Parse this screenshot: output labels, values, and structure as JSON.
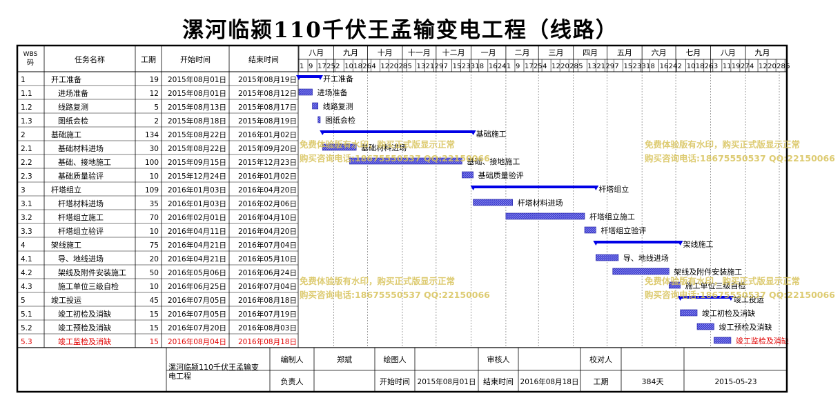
{
  "title": "漯河临颍110千伏王孟输变电工程（线路）",
  "headers": {
    "wbs": "WBS\n码",
    "name": "任务名称",
    "duration": "工期",
    "start": "开始时间",
    "end": "结束时间"
  },
  "months": [
    "八月",
    "九月",
    "十月",
    "十一月",
    "十二月",
    "一月",
    "二月",
    "三月",
    "四月",
    "五月",
    "六月",
    "七月",
    "八月",
    "九月"
  ],
  "days": [
    "1",
    "9",
    "17",
    "25",
    "2",
    "10",
    "18",
    "26",
    "4",
    "12",
    "20",
    "28",
    "5",
    "13",
    "21",
    "29",
    "7",
    "15",
    "23",
    "31",
    "8",
    "16",
    "24",
    "1",
    "9",
    "17",
    "25",
    "4",
    "12",
    "20",
    "28",
    "5",
    "13",
    "21",
    "29",
    "7",
    "15",
    "23",
    "31",
    "8",
    "16",
    "24",
    "2",
    "10",
    "18",
    "26",
    "3",
    "11",
    "19",
    "27",
    "4",
    "12",
    "20",
    "28",
    "6"
  ],
  "colors": {
    "summary": "#0000e6",
    "task": "#3c3cd0",
    "highlight": "#e00000",
    "watermark": "#d8c35a"
  },
  "chart_data": {
    "type": "gantt",
    "tasks": [
      {
        "wbs": "1",
        "name": "开工准备",
        "duration": 19,
        "start": "2015年08月01日",
        "end": "2015年08月19日",
        "summary": true,
        "bar_label": "开工准备"
      },
      {
        "wbs": "1.1",
        "name": "进场准备",
        "duration": 12,
        "start": "2015年08月01日",
        "end": "2015年08月12日",
        "summary": false,
        "bar_label": "进场准备"
      },
      {
        "wbs": "1.2",
        "name": "线路复测",
        "duration": 5,
        "start": "2015年08月13日",
        "end": "2015年08月17日",
        "summary": false,
        "bar_label": "线路复测"
      },
      {
        "wbs": "1.3",
        "name": "图纸会检",
        "duration": 2,
        "start": "2015年08月18日",
        "end": "2015年08月19日",
        "summary": false,
        "bar_label": "图纸会检"
      },
      {
        "wbs": "2",
        "name": "基础施工",
        "duration": 134,
        "start": "2015年08月22日",
        "end": "2016年01月02日",
        "summary": true,
        "bar_label": "基础施工"
      },
      {
        "wbs": "2.1",
        "name": "基础材料进场",
        "duration": 30,
        "start": "2015年08月22日",
        "end": "2015年09月20日",
        "summary": false,
        "bar_label": "基础材料进场"
      },
      {
        "wbs": "2.2",
        "name": "基础、接地施工",
        "duration": 100,
        "start": "2015年09月15日",
        "end": "2015年12月23日",
        "summary": false,
        "bar_label": "基础、接地施工"
      },
      {
        "wbs": "2.3",
        "name": "基础质量验评",
        "duration": 10,
        "start": "2015年12月24日",
        "end": "2016年01月02日",
        "summary": false,
        "bar_label": "基础质量验评"
      },
      {
        "wbs": "3",
        "name": "杆塔组立",
        "duration": 109,
        "start": "2016年01月03日",
        "end": "2016年04月20日",
        "summary": true,
        "bar_label": "杆塔组立"
      },
      {
        "wbs": "3.1",
        "name": "杆塔材料进场",
        "duration": 35,
        "start": "2016年01月03日",
        "end": "2016年02月06日",
        "summary": false,
        "bar_label": "杆塔材料进场"
      },
      {
        "wbs": "3.2",
        "name": "杆塔组立施工",
        "duration": 70,
        "start": "2016年02月01日",
        "end": "2016年04月10日",
        "summary": false,
        "bar_label": "杆塔组立施工"
      },
      {
        "wbs": "3.3",
        "name": "杆塔组立验评",
        "duration": 10,
        "start": "2016年04月11日",
        "end": "2016年04月20日",
        "summary": false,
        "bar_label": "杆塔组立验评"
      },
      {
        "wbs": "4",
        "name": "架线施工",
        "duration": 75,
        "start": "2016年04月21日",
        "end": "2016年07月04日",
        "summary": true,
        "bar_label": "架线施工"
      },
      {
        "wbs": "4.1",
        "name": "导、地线进场",
        "duration": 20,
        "start": "2016年04月21日",
        "end": "2016年05月10日",
        "summary": false,
        "bar_label": "导、地线进场"
      },
      {
        "wbs": "4.2",
        "name": "架线及附件安装施工",
        "duration": 50,
        "start": "2016年05月06日",
        "end": "2016年06月24日",
        "summary": false,
        "bar_label": "架线及附件安装施工"
      },
      {
        "wbs": "4.3",
        "name": "施工单位三级自检",
        "duration": 10,
        "start": "2016年06月25日",
        "end": "2016年07月04日",
        "summary": false,
        "bar_label": "施工单位三级自检"
      },
      {
        "wbs": "5",
        "name": "竣工投运",
        "duration": 45,
        "start": "2016年07月05日",
        "end": "2016年08月18日",
        "summary": true,
        "bar_label": "竣工投运"
      },
      {
        "wbs": "5.1",
        "name": "竣工初检及消缺",
        "duration": 15,
        "start": "2016年07月05日",
        "end": "2016年07月19日",
        "summary": false,
        "bar_label": "竣工初检及消缺"
      },
      {
        "wbs": "5.2",
        "name": "竣工预检及消缺",
        "duration": 15,
        "start": "2016年07月20日",
        "end": "2016年08月03日",
        "summary": false,
        "bar_label": "竣工预检及消缺"
      },
      {
        "wbs": "5.3",
        "name": "竣工监检及消缺",
        "duration": 15,
        "start": "2016年08月04日",
        "end": "2016年08月18日",
        "summary": false,
        "highlight": true,
        "bar_label": "竣工监检及消缺"
      }
    ]
  },
  "footer": {
    "project_name": "漯河临颍110千伏王孟输变电工程",
    "editor_label": "编制人",
    "editor": "郑斌",
    "drafter_label": "绘图人",
    "drafter": "",
    "reviewer_label": "审核人",
    "reviewer": "",
    "checker_label": "校对人",
    "checker": "",
    "owner_label": "负责人",
    "owner": "",
    "start_label": "开始时间",
    "start": "2015年08月01日",
    "end_label": "结束时间",
    "end": "2016年08月18日",
    "duration_label": "工期",
    "duration": "384天",
    "date": "2015-05-23"
  },
  "watermark": {
    "line1": "免费体验版有水印，购买正式版显示正常",
    "line2": "购买咨询电话:18675550537 QQ:22150066"
  }
}
